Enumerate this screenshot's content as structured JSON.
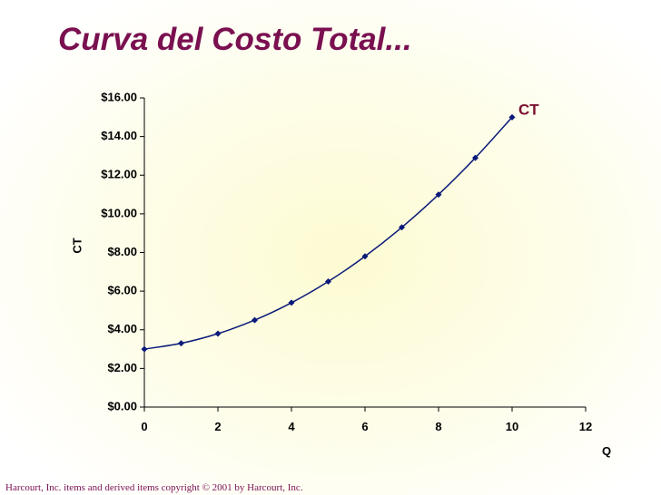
{
  "slide": {
    "title": "Curva del Costo Total...",
    "copyright": "Harcourt, Inc. items and derived items copyright © 2001 by Harcourt, Inc."
  },
  "chart_data": {
    "type": "line",
    "title": "",
    "xlabel": "Q",
    "ylabel": "CT",
    "xlim": [
      0,
      12
    ],
    "ylim": [
      0,
      16
    ],
    "x_ticks": [
      "0",
      "2",
      "4",
      "6",
      "8",
      "10",
      "12"
    ],
    "y_ticks": [
      "$0.00",
      "$2.00",
      "$4.00",
      "$6.00",
      "$8.00",
      "$10.00",
      "$12.00",
      "$14.00",
      "$16.00"
    ],
    "grid": false,
    "series": [
      {
        "name": "CT",
        "color": "#0a1a7a",
        "marker": "diamond",
        "x": [
          0,
          1,
          2,
          3,
          4,
          5,
          6,
          7,
          8,
          9,
          10
        ],
        "y": [
          3.0,
          3.3,
          3.8,
          4.5,
          5.4,
          6.5,
          7.8,
          9.3,
          11.0,
          12.9,
          15.0
        ]
      }
    ],
    "label_color": "#7a1030"
  }
}
